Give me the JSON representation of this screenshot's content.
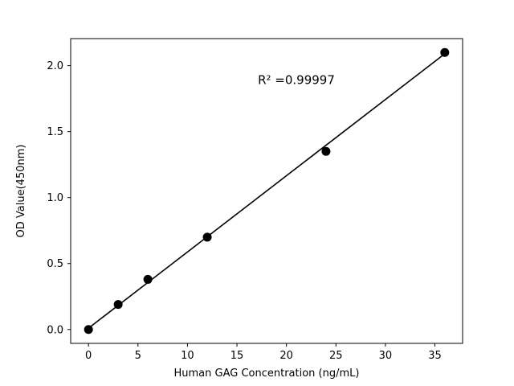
{
  "chart_data": {
    "type": "scatter",
    "title": "",
    "xlabel": "Human GAG Concentration (ng/mL)",
    "ylabel": "OD Value(450nm)",
    "x": [
      0,
      3,
      6,
      12,
      24,
      36
    ],
    "y": [
      0.0,
      0.19,
      0.38,
      0.7,
      1.35,
      2.1
    ],
    "fit_line": {
      "x1": 0,
      "y1": 0.01,
      "x2": 36,
      "y2": 2.09
    },
    "annotation": {
      "text": "R² =0.99997",
      "x": 21,
      "y": 1.86
    },
    "xlim": [
      -1.8,
      37.8
    ],
    "ylim": [
      -0.105,
      2.205
    ],
    "xticks": [
      "0",
      "5",
      "10",
      "15",
      "20",
      "25",
      "30",
      "35"
    ],
    "yticks": [
      "0.0",
      "0.5",
      "1.0",
      "1.5",
      "2.0"
    ],
    "grid": false,
    "legend_position": "none",
    "marker_color": "#000000",
    "line_color": "#000000",
    "background_color": "#ffffff"
  }
}
